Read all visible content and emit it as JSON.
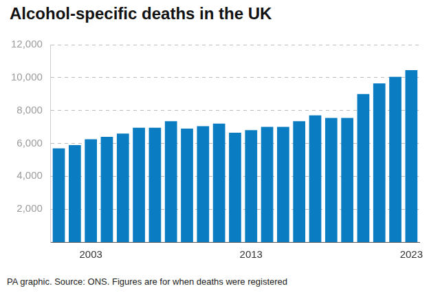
{
  "chart_data": {
    "type": "bar",
    "title": "Alcohol-specific deaths in the UK",
    "note": "PA graphic. Source: ONS. Figures are for when deaths were registered",
    "categories": [
      null,
      null,
      "2003",
      null,
      null,
      null,
      null,
      null,
      null,
      null,
      null,
      null,
      "2013",
      null,
      null,
      null,
      null,
      null,
      null,
      null,
      null,
      null,
      "2023"
    ],
    "values": [
      5700,
      5900,
      6250,
      6400,
      6600,
      6950,
      6950,
      7350,
      6900,
      7050,
      7200,
      6650,
      6800,
      7000,
      7000,
      7350,
      7700,
      7550,
      7550,
      9000,
      9650,
      10050,
      10450
    ],
    "color": "#0a7cc1",
    "ylim": [
      0,
      12000
    ],
    "yticks": [
      {
        "value": 2000,
        "label": "2,000"
      },
      {
        "value": 4000,
        "label": "4,000"
      },
      {
        "value": 6000,
        "label": "6,000"
      },
      {
        "value": 8000,
        "label": "8,000"
      },
      {
        "value": 10000,
        "label": "10,000"
      },
      {
        "value": 12000,
        "label": "12,000"
      }
    ],
    "grid": true
  }
}
